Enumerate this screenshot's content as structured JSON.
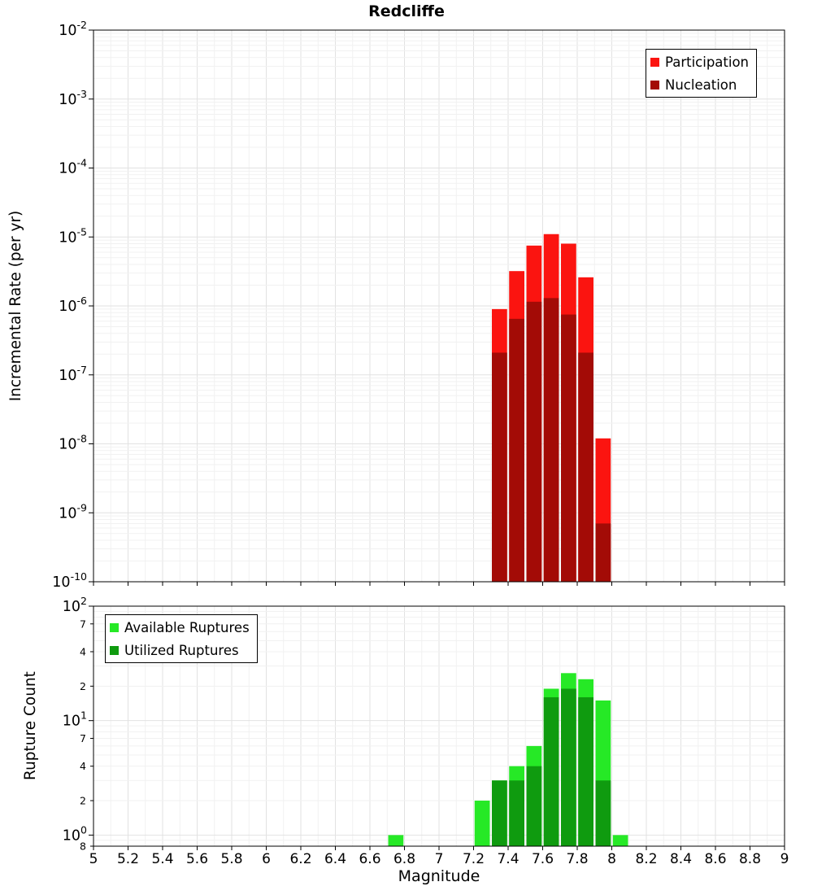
{
  "x_axis": {
    "label": "Magnitude",
    "range": [
      5,
      9
    ],
    "tick_step": 0.2,
    "ticks": [
      "5",
      "5.2",
      "5.4",
      "5.6",
      "5.8",
      "6",
      "6.2",
      "6.4",
      "6.6",
      "6.8",
      "7",
      "7.2",
      "7.4",
      "7.6",
      "7.8",
      "8",
      "8.2",
      "8.4",
      "8.6",
      "8.8",
      "9"
    ]
  },
  "chart_data": [
    {
      "type": "bar",
      "title": "Redcliffe",
      "ylabel": "Incremental Rate (per yr)",
      "xlabel": "Magnitude",
      "y_scale": "log",
      "y_range": [
        1e-10,
        0.01
      ],
      "bin_width": 0.1,
      "legend_position": "top-right",
      "grid": true,
      "y_ticks": {
        "majors": [
          {
            "v": 0.01,
            "exp": "-2"
          },
          {
            "v": 0.001,
            "exp": "-3"
          },
          {
            "v": 0.0001,
            "exp": "-4"
          },
          {
            "v": 1e-05,
            "exp": "-5"
          },
          {
            "v": 1e-06,
            "exp": "-6"
          },
          {
            "v": 1e-07,
            "exp": "-7"
          },
          {
            "v": 1e-08,
            "exp": "-8"
          },
          {
            "v": 1e-09,
            "exp": "-9"
          },
          {
            "v": 1e-10,
            "exp": "-10"
          }
        ],
        "minors": []
      },
      "series": [
        {
          "name": "Participation",
          "color": "#fb1410",
          "x": [
            7.3,
            7.4,
            7.5,
            7.6,
            7.7,
            7.8,
            7.9
          ],
          "values": [
            9e-07,
            3.2e-06,
            7.5e-06,
            1.1e-05,
            8e-06,
            2.6e-06,
            1.2e-08
          ]
        },
        {
          "name": "Nucleation",
          "color": "#a30b06",
          "x": [
            7.3,
            7.4,
            7.5,
            7.6,
            7.7,
            7.8,
            7.9
          ],
          "values": [
            2.1e-07,
            6.5e-07,
            1.15e-06,
            1.3e-06,
            7.5e-07,
            2.1e-07,
            7e-10
          ]
        }
      ]
    },
    {
      "type": "bar",
      "title": "",
      "ylabel": "Rupture Count",
      "xlabel": "Magnitude",
      "y_scale": "log",
      "y_range": [
        0.8,
        100
      ],
      "bin_width": 0.1,
      "legend_position": "top-left",
      "grid": true,
      "y_ticks": {
        "majors": [
          {
            "v": 100,
            "exp": "2"
          },
          {
            "v": 10,
            "exp": "1"
          },
          {
            "v": 1,
            "exp": "0"
          }
        ],
        "minors": [
          {
            "v": 70,
            "label": "7"
          },
          {
            "v": 40,
            "label": "4"
          },
          {
            "v": 20,
            "label": "2"
          },
          {
            "v": 7,
            "label": "7"
          },
          {
            "v": 4,
            "label": "4"
          },
          {
            "v": 2,
            "label": "2"
          },
          {
            "v": 0.8,
            "label": "8"
          }
        ]
      },
      "series": [
        {
          "name": "Available Ruptures",
          "color": "#26e926",
          "x": [
            6.7,
            7.2,
            7.3,
            7.4,
            7.5,
            7.6,
            7.7,
            7.8,
            7.9,
            8.0
          ],
          "values": [
            1,
            2,
            3,
            4,
            6,
            19,
            26,
            23,
            15,
            1
          ]
        },
        {
          "name": "Utilized Ruptures",
          "color": "#0f9b0f",
          "x": [
            6.7,
            7.2,
            7.3,
            7.4,
            7.5,
            7.6,
            7.7,
            7.8,
            7.9,
            8.0
          ],
          "values": [
            0,
            0,
            3,
            3,
            4,
            16,
            19,
            16,
            3,
            0
          ]
        }
      ]
    }
  ]
}
